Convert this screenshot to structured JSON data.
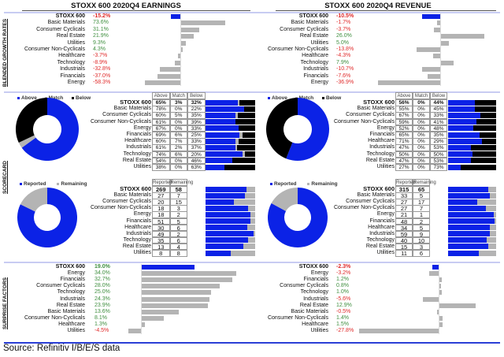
{
  "source": "Source: Refinitiv I/B/E/S data",
  "section_labels": {
    "growth": "BLENDED GROWTH RATES",
    "scorecard": "SCORECARD",
    "surprise": "SURPRISE FACTORS"
  },
  "colors": {
    "blue": "#0b22e6",
    "gray": "#b4b4b4",
    "black": "#000000",
    "positive": "#3f8f3f",
    "negative": "#e02a2a",
    "divider": "#c8ccf2"
  },
  "chart_data": [
    {
      "type": "bar",
      "title": "STOXX 600 2020Q4 EARNINGS",
      "growth": [
        {
          "label": "STOXX 600",
          "value": "-15.2%"
        },
        {
          "label": "Basic Materials",
          "value": "73.6%"
        },
        {
          "label": "Consumer Cyclicals",
          "value": "31.1%"
        },
        {
          "label": "Real Estate",
          "value": "21.9%"
        },
        {
          "label": "Utilities",
          "value": "9.3%"
        },
        {
          "label": "Consumer Non-Cyclicals",
          "value": "4.3%"
        },
        {
          "label": "Healthcare",
          "value": "-3.7%"
        },
        {
          "label": "Technology",
          "value": "-8.9%"
        },
        {
          "label": "Industrials",
          "value": "-32.8%"
        },
        {
          "label": "Financials",
          "value": "-37.0%"
        },
        {
          "label": "Energy",
          "value": "-58.3%"
        }
      ],
      "beat": {
        "legend": [
          "Above",
          "Match",
          "Below"
        ],
        "headers": [
          "Above",
          "Match",
          "Below"
        ],
        "rows": [
          {
            "label": "STOXX 600",
            "cells": [
              "65%",
              "3%",
              "32%"
            ]
          },
          {
            "label": "Basic Materials",
            "cells": [
              "78%",
              "0%",
              "22%"
            ]
          },
          {
            "label": "Consumer Cyclicals",
            "cells": [
              "60%",
              "5%",
              "35%"
            ]
          },
          {
            "label": "Consumer Non-Cyclicals",
            "cells": [
              "61%",
              "0%",
              "39%"
            ]
          },
          {
            "label": "Energy",
            "cells": [
              "67%",
              "0%",
              "33%"
            ]
          },
          {
            "label": "Financials",
            "cells": [
              "69%",
              "6%",
              "25%"
            ]
          },
          {
            "label": "Healthcare",
            "cells": [
              "60%",
              "7%",
              "33%"
            ]
          },
          {
            "label": "Industrials",
            "cells": [
              "61%",
              "2%",
              "37%"
            ]
          },
          {
            "label": "Technology",
            "cells": [
              "74%",
              "6%",
              "20%"
            ]
          },
          {
            "label": "Real Estate",
            "cells": [
              "54%",
              "0%",
              "46%"
            ]
          },
          {
            "label": "Utilities",
            "cells": [
              "38%",
              "0%",
              "63%"
            ]
          }
        ]
      },
      "reported": {
        "legend": [
          "Reported",
          "Remaining"
        ],
        "headers": [
          "Reported",
          "Remaining"
        ],
        "rows": [
          {
            "label": "STOXX 600",
            "cells": [
              "269",
              "58"
            ]
          },
          {
            "label": "Basic Materials",
            "cells": [
              "27",
              "7"
            ]
          },
          {
            "label": "Consumer Cyclicals",
            "cells": [
              "20",
              "15"
            ]
          },
          {
            "label": "Consumer Non-Cyclicals",
            "cells": [
              "18",
              "3"
            ]
          },
          {
            "label": "Energy",
            "cells": [
              "18",
              "2"
            ]
          },
          {
            "label": "Financials",
            "cells": [
              "51",
              "5"
            ]
          },
          {
            "label": "Healthcare",
            "cells": [
              "30",
              "6"
            ]
          },
          {
            "label": "Industrials",
            "cells": [
              "49",
              "2"
            ]
          },
          {
            "label": "Technology",
            "cells": [
              "35",
              "6"
            ]
          },
          {
            "label": "Real Estate",
            "cells": [
              "13",
              "4"
            ]
          },
          {
            "label": "Utilities",
            "cells": [
              "8",
              "8"
            ]
          }
        ]
      },
      "surprise": [
        {
          "label": "STOXX 600",
          "value": "19.0%"
        },
        {
          "label": "Energy",
          "value": "34.0%"
        },
        {
          "label": "Financials",
          "value": "32.7%"
        },
        {
          "label": "Consumer Cyclicals",
          "value": "28.0%"
        },
        {
          "label": "Technology",
          "value": "25.0%"
        },
        {
          "label": "Industrials",
          "value": "24.3%"
        },
        {
          "label": "Real Estate",
          "value": "23.9%"
        },
        {
          "label": "Basic Materials",
          "value": "13.6%"
        },
        {
          "label": "Consumer Non-Cyclicals",
          "value": "8.1%"
        },
        {
          "label": "Healthcare",
          "value": "1.3%"
        },
        {
          "label": "Utilities",
          "value": "-4.5%"
        }
      ]
    },
    {
      "type": "bar",
      "title": "STOXX 600 2020Q4 REVENUE",
      "growth": [
        {
          "label": "STOXX 600",
          "value": "-10.5%"
        },
        {
          "label": "Basic Materials",
          "value": "-1.7%"
        },
        {
          "label": "Consumer Cyclicals",
          "value": "-3.7%"
        },
        {
          "label": "Real Estate",
          "value": "26.0%"
        },
        {
          "label": "Utilities",
          "value": "5.0%"
        },
        {
          "label": "Consumer Non-Cyclicals",
          "value": "-13.8%"
        },
        {
          "label": "Healthcare",
          "value": "-4.3%"
        },
        {
          "label": "Technology",
          "value": "7.9%"
        },
        {
          "label": "Industrials",
          "value": "-10.7%"
        },
        {
          "label": "Financials",
          "value": "-7.6%"
        },
        {
          "label": "Energy",
          "value": "-36.9%"
        }
      ],
      "beat": {
        "legend": [
          "Above",
          "Match",
          "Below"
        ],
        "headers": [
          "Above",
          "Match",
          "Below"
        ],
        "rows": [
          {
            "label": "STOXX 600",
            "cells": [
              "56%",
              "0%",
              "44%"
            ]
          },
          {
            "label": "Basic Materials",
            "cells": [
              "55%",
              "0%",
              "45%"
            ]
          },
          {
            "label": "Consumer Cyclicals",
            "cells": [
              "67%",
              "0%",
              "33%"
            ]
          },
          {
            "label": "Consumer Non-Cyclicals",
            "cells": [
              "59%",
              "0%",
              "41%"
            ]
          },
          {
            "label": "Energy",
            "cells": [
              "52%",
              "0%",
              "48%"
            ]
          },
          {
            "label": "Financials",
            "cells": [
              "65%",
              "0%",
              "35%"
            ]
          },
          {
            "label": "Healthcare",
            "cells": [
              "71%",
              "0%",
              "29%"
            ]
          },
          {
            "label": "Industrials",
            "cells": [
              "47%",
              "0%",
              "53%"
            ]
          },
          {
            "label": "Technology",
            "cells": [
              "50%",
              "0%",
              "50%"
            ]
          },
          {
            "label": "Real Estate",
            "cells": [
              "47%",
              "0%",
              "53%"
            ]
          },
          {
            "label": "Utilities",
            "cells": [
              "27%",
              "0%",
              "73%"
            ]
          }
        ]
      },
      "reported": {
        "legend": [
          "Reported",
          "Remaining"
        ],
        "headers": [
          "Reported",
          "Remaining"
        ],
        "rows": [
          {
            "label": "STOXX 600",
            "cells": [
              "315",
              "65"
            ]
          },
          {
            "label": "Basic Materials",
            "cells": [
              "33",
              "5"
            ]
          },
          {
            "label": "Consumer Cyclicals",
            "cells": [
              "27",
              "17"
            ]
          },
          {
            "label": "Consumer Non-Cyclicals",
            "cells": [
              "27",
              "7"
            ]
          },
          {
            "label": "Energy",
            "cells": [
              "21",
              "1"
            ]
          },
          {
            "label": "Financials",
            "cells": [
              "48",
              "2"
            ]
          },
          {
            "label": "Healthcare",
            "cells": [
              "34",
              "5"
            ]
          },
          {
            "label": "Industrials",
            "cells": [
              "59",
              "9"
            ]
          },
          {
            "label": "Technology",
            "cells": [
              "40",
              "10"
            ]
          },
          {
            "label": "Real Estate",
            "cells": [
              "15",
              "3"
            ]
          },
          {
            "label": "Utilities",
            "cells": [
              "11",
              "6"
            ]
          }
        ]
      },
      "surprise": [
        {
          "label": "STOXX 600",
          "value": "-2.3%"
        },
        {
          "label": "Energy",
          "value": "-3.2%"
        },
        {
          "label": "Financials",
          "value": "1.2%"
        },
        {
          "label": "Consumer Cyclicals",
          "value": "0.8%"
        },
        {
          "label": "Technology",
          "value": "1.0%"
        },
        {
          "label": "Industrials",
          "value": "-5.6%"
        },
        {
          "label": "Real Estate",
          "value": "12.9%"
        },
        {
          "label": "Basic Materials",
          "value": "-0.5%"
        },
        {
          "label": "Consumer Non-Cyclicals",
          "value": "1.4%"
        },
        {
          "label": "Healthcare",
          "value": "1.5%"
        },
        {
          "label": "Utilities",
          "value": "-27.8%"
        }
      ]
    }
  ]
}
